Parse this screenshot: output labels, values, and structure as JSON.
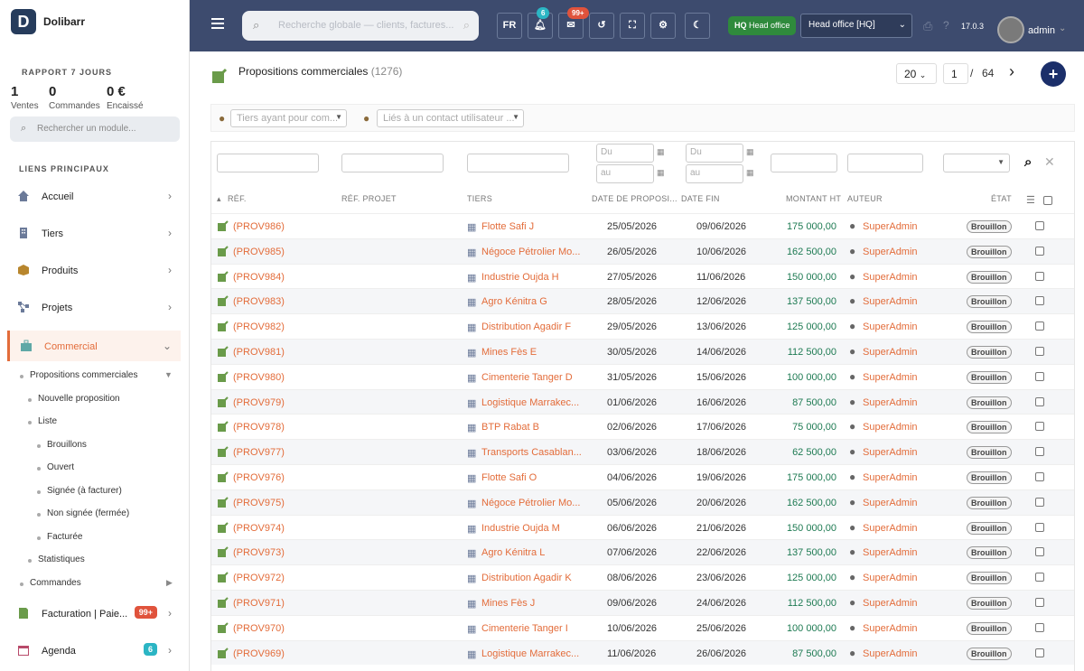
{
  "app": {
    "name": "Dolibarr",
    "logo_letter": "D",
    "version": "17.0.3",
    "user": "admin"
  },
  "report": {
    "title": "RAPPORT 7 JOURS",
    "stats": [
      {
        "value": "1",
        "label": "Ventes"
      },
      {
        "value": "0",
        "label": "Commandes"
      },
      {
        "value": "0 €",
        "label": "Encaissé"
      }
    ]
  },
  "sidebar": {
    "search_placeholder": "Rechercher un module...",
    "section_title": "LIENS PRINCIPAUX",
    "items": [
      {
        "label": "Accueil",
        "icon": "home-icon"
      },
      {
        "label": "Tiers",
        "icon": "building-icon"
      },
      {
        "label": "Produits",
        "icon": "box-icon"
      },
      {
        "label": "Projets",
        "icon": "project-icon"
      },
      {
        "label": "Commercial",
        "icon": "briefcase-icon"
      },
      {
        "label": "Facturation | Paie...",
        "icon": "invoice-icon",
        "badge": "99+"
      },
      {
        "label": "Agenda",
        "icon": "calendar-icon",
        "badge": "6"
      }
    ],
    "submenu": [
      "Propositions commerciales",
      "Nouvelle proposition",
      "Liste",
      "Brouillons",
      "Ouvert",
      "Signée (à facturer)",
      "Non signée (fermée)",
      "Facturée",
      "Statistiques",
      "Commandes"
    ]
  },
  "topbar": {
    "search_placeholder": "Recherche globale — clients, factures...",
    "lang": "FR",
    "notif_badge": "6",
    "mail_badge": "99+",
    "entity_tag": "HQ",
    "entity_name": "Head office",
    "entity_select": "Head office [HQ]"
  },
  "page": {
    "title": "Propositions commerciales",
    "count": "(1276)",
    "per_page": "20",
    "page": "1",
    "page_sep": "/",
    "total_pages": "64"
  },
  "filters": {
    "thirdparty_placeholder": "Tiers ayant pour com...",
    "contact_placeholder": "Liés à un contact utilisateur ...",
    "date_from": "Du",
    "date_to": "au"
  },
  "table": {
    "columns": [
      "RÉF.",
      "RÉF. PROJET",
      "TIERS",
      "DATE DE PROPOSI...",
      "DATE FIN",
      "MONTANT HT",
      "AUTEUR",
      "ÉTAT"
    ],
    "rows": [
      {
        "ref": "(PROV986)",
        "tiers": "Flotte Safi J",
        "date": "25/05/2026",
        "end": "09/06/2026",
        "amount": "175 000,00",
        "author": "SuperAdmin",
        "status": "Brouillon"
      },
      {
        "ref": "(PROV985)",
        "tiers": "Négoce Pétrolier Mo...",
        "date": "26/05/2026",
        "end": "10/06/2026",
        "amount": "162 500,00",
        "author": "SuperAdmin",
        "status": "Brouillon"
      },
      {
        "ref": "(PROV984)",
        "tiers": "Industrie Oujda H",
        "date": "27/05/2026",
        "end": "11/06/2026",
        "amount": "150 000,00",
        "author": "SuperAdmin",
        "status": "Brouillon"
      },
      {
        "ref": "(PROV983)",
        "tiers": "Agro Kénitra G",
        "date": "28/05/2026",
        "end": "12/06/2026",
        "amount": "137 500,00",
        "author": "SuperAdmin",
        "status": "Brouillon"
      },
      {
        "ref": "(PROV982)",
        "tiers": "Distribution Agadir F",
        "date": "29/05/2026",
        "end": "13/06/2026",
        "amount": "125 000,00",
        "author": "SuperAdmin",
        "status": "Brouillon"
      },
      {
        "ref": "(PROV981)",
        "tiers": "Mines Fès E",
        "date": "30/05/2026",
        "end": "14/06/2026",
        "amount": "112 500,00",
        "author": "SuperAdmin",
        "status": "Brouillon"
      },
      {
        "ref": "(PROV980)",
        "tiers": "Cimenterie Tanger D",
        "date": "31/05/2026",
        "end": "15/06/2026",
        "amount": "100 000,00",
        "author": "SuperAdmin",
        "status": "Brouillon"
      },
      {
        "ref": "(PROV979)",
        "tiers": "Logistique Marrakec...",
        "date": "01/06/2026",
        "end": "16/06/2026",
        "amount": "87 500,00",
        "author": "SuperAdmin",
        "status": "Brouillon"
      },
      {
        "ref": "(PROV978)",
        "tiers": "BTP Rabat B",
        "date": "02/06/2026",
        "end": "17/06/2026",
        "amount": "75 000,00",
        "author": "SuperAdmin",
        "status": "Brouillon"
      },
      {
        "ref": "(PROV977)",
        "tiers": "Transports Casablan...",
        "date": "03/06/2026",
        "end": "18/06/2026",
        "amount": "62 500,00",
        "author": "SuperAdmin",
        "status": "Brouillon"
      },
      {
        "ref": "(PROV976)",
        "tiers": "Flotte Safi O",
        "date": "04/06/2026",
        "end": "19/06/2026",
        "amount": "175 000,00",
        "author": "SuperAdmin",
        "status": "Brouillon"
      },
      {
        "ref": "(PROV975)",
        "tiers": "Négoce Pétrolier Mo...",
        "date": "05/06/2026",
        "end": "20/06/2026",
        "amount": "162 500,00",
        "author": "SuperAdmin",
        "status": "Brouillon"
      },
      {
        "ref": "(PROV974)",
        "tiers": "Industrie Oujda M",
        "date": "06/06/2026",
        "end": "21/06/2026",
        "amount": "150 000,00",
        "author": "SuperAdmin",
        "status": "Brouillon"
      },
      {
        "ref": "(PROV973)",
        "tiers": "Agro Kénitra L",
        "date": "07/06/2026",
        "end": "22/06/2026",
        "amount": "137 500,00",
        "author": "SuperAdmin",
        "status": "Brouillon"
      },
      {
        "ref": "(PROV972)",
        "tiers": "Distribution Agadir K",
        "date": "08/06/2026",
        "end": "23/06/2026",
        "amount": "125 000,00",
        "author": "SuperAdmin",
        "status": "Brouillon"
      },
      {
        "ref": "(PROV971)",
        "tiers": "Mines Fès J",
        "date": "09/06/2026",
        "end": "24/06/2026",
        "amount": "112 500,00",
        "author": "SuperAdmin",
        "status": "Brouillon"
      },
      {
        "ref": "(PROV970)",
        "tiers": "Cimenterie Tanger I",
        "date": "10/06/2026",
        "end": "25/06/2026",
        "amount": "100 000,00",
        "author": "SuperAdmin",
        "status": "Brouillon"
      },
      {
        "ref": "(PROV969)",
        "tiers": "Logistique Marrakec...",
        "date": "11/06/2026",
        "end": "26/06/2026",
        "amount": "87 500,00",
        "author": "SuperAdmin",
        "status": "Brouillon"
      }
    ]
  },
  "colors": {
    "accent": "#e36c3a",
    "topbar": "#3d4b6e",
    "green": "#1d7a52",
    "badge_teal": "#2bb5c4",
    "badge_red": "#e0533c"
  }
}
